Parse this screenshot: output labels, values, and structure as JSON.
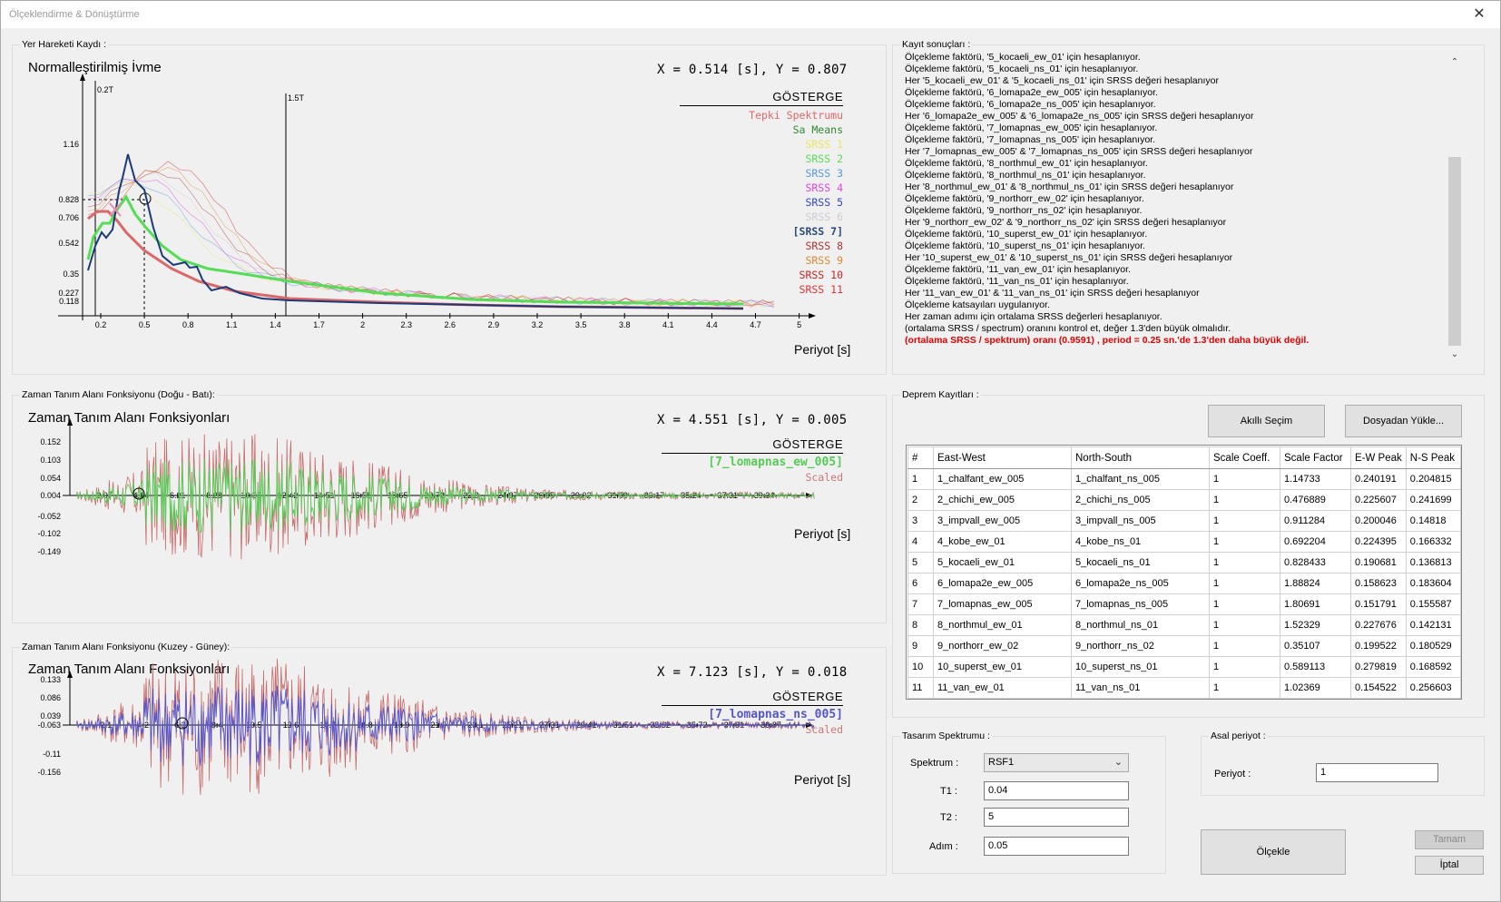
{
  "window": {
    "title": "Ölçeklendirme & Dönüştürme",
    "close": "✕"
  },
  "groups": {
    "spectrum": "Yer Hareketi Kaydı :",
    "log": "Kayıt sonuçları :",
    "ew": "Zaman Tanım Alanı Fonksiyonu (Doğu - Batı):",
    "records": "Deprem Kayıtları :",
    "ns": "Zaman Tanım Alanı Fonksiyonu (Kuzey - Güney):",
    "design": "Tasarım Spektrumu :",
    "period": "Asal periyot :"
  },
  "spectrum_chart": {
    "title": "Normalleştirilmiş İvme",
    "coord": "X = 0.514 [s],  Y = 0.807",
    "xlabel": "Periyot [s]",
    "legend_title": "GÖSTERGE",
    "legend": [
      {
        "label": "Tepki Spektrumu",
        "color": "#e06666"
      },
      {
        "label": "Sa Means",
        "color": "#2e8b2e"
      },
      {
        "label": "SRSS 1",
        "color": "#e8e85a"
      },
      {
        "label": "SRSS 2",
        "color": "#55dd55"
      },
      {
        "label": "SRSS 3",
        "color": "#5599dd"
      },
      {
        "label": "SRSS 4",
        "color": "#dd44dd"
      },
      {
        "label": "SRSS 5",
        "color": "#3344cc"
      },
      {
        "label": "SRSS 6",
        "color": "#cccccc"
      },
      {
        "label": "[SRSS 7]",
        "color": "#2a4a7a"
      },
      {
        "label": "SRSS 8",
        "color": "#aa3333"
      },
      {
        "label": "SRSS 9",
        "color": "#dd8833"
      },
      {
        "label": "SRSS 10",
        "color": "#cc2222"
      },
      {
        "label": "SRSS 11",
        "color": "#dd3333"
      }
    ],
    "yticks": [
      "1.16",
      "0.828",
      "0.706",
      "0.542",
      "0.35",
      "0.227",
      "0.118"
    ],
    "xticks": [
      "0.2",
      "0.5",
      "0.8",
      "1.1",
      "1.4",
      "1.7",
      "2",
      "2.3",
      "2.6",
      "2.9",
      "3.2",
      "3.5",
      "3.8",
      "4.1",
      "4.4",
      "4.7",
      "5"
    ],
    "markers": [
      "0.2T",
      "1.5T"
    ]
  },
  "ew_chart": {
    "title": "Zaman Tanım Alanı Fonksiyonları",
    "coord": "X = 4.551 [s],  Y = 0.005",
    "xlabel": "Periyot [s]",
    "legend_title": "GÖSTERGE",
    "legend": [
      {
        "label": "[7_lomapnas_ew_005]",
        "color": "#55cc55"
      },
      {
        "label": "Scaled",
        "color": "#cc7777"
      }
    ],
    "yticks": [
      "0.152",
      "0.103",
      "0.054",
      "0.004",
      "-0.052",
      "-0.102",
      "-0.149"
    ],
    "xticks": [
      "2.07",
      "4.14",
      "6.21",
      "8.28",
      "10.35",
      "12.42",
      "14.51",
      "16.58",
      "18.65",
      "20.72",
      "22.8",
      "24.87",
      "26.95",
      "29.02",
      "31.09",
      "33.17",
      "35.24",
      "37.31",
      "39.34"
    ]
  },
  "ns_chart": {
    "title": "Zaman Tanım Alanı Fonksiyonları",
    "coord": "X = 7.123 [s],  Y = 0.018",
    "xlabel": "Periyot [s]",
    "legend_title": "GÖSTERGE",
    "legend": [
      {
        "label": "[7_lomapnas_ns_005]",
        "color": "#5555cc"
      },
      {
        "label": "Scaled",
        "color": "#cc7777"
      }
    ],
    "yticks": [
      "0.133",
      "0.086",
      "0.039",
      "-0.063",
      "-0.11",
      "-0.156"
    ],
    "xticks": [
      "2.1",
      "4.2",
      "6.3",
      "8.4",
      "10.5",
      "12.6",
      "14.7",
      "16.8",
      "18.9",
      "21.0",
      "23.1",
      "25.21",
      "27.31",
      "29.41",
      "31.51",
      "33.62",
      "35.72",
      "37.81",
      "39.87"
    ]
  },
  "log": [
    "Ölçekleme faktörü, '5_kocaeli_ew_01' için hesaplanıyor.",
    "Ölçekleme faktörü, '5_kocaeli_ns_01' için hesaplanıyor.",
    "Her '5_kocaeli_ew_01' & '5_kocaeli_ns_01' için SRSS değeri hesaplanıyor",
    "Ölçekleme faktörü, '6_lomapa2e_ew_005' için hesaplanıyor.",
    "Ölçekleme faktörü, '6_lomapa2e_ns_005' için hesaplanıyor.",
    "Her '6_lomapa2e_ew_005' & '6_lomapa2e_ns_005' için SRSS değeri hesaplanıyor",
    "Ölçekleme faktörü, '7_lomapnas_ew_005' için hesaplanıyor.",
    "Ölçekleme faktörü, '7_lomapnas_ns_005' için hesaplanıyor.",
    "Her '7_lomapnas_ew_005' & '7_lomapnas_ns_005' için SRSS değeri hesaplanıyor",
    "Ölçekleme faktörü, '8_northmul_ew_01' için hesaplanıyor.",
    "Ölçekleme faktörü, '8_northmul_ns_01' için hesaplanıyor.",
    "Her '8_northmul_ew_01' & '8_northmul_ns_01' için SRSS değeri hesaplanıyor",
    "Ölçekleme faktörü, '9_northorr_ew_02' için hesaplanıyor.",
    "Ölçekleme faktörü, '9_northorr_ns_02' için hesaplanıyor.",
    "Her '9_northorr_ew_02' & '9_northorr_ns_02' için SRSS değeri hesaplanıyor",
    "Ölçekleme faktörü, '10_superst_ew_01' için hesaplanıyor.",
    "Ölçekleme faktörü, '10_superst_ns_01' için hesaplanıyor.",
    "Her '10_superst_ew_01' & '10_superst_ns_01' için SRSS değeri hesaplanıyor",
    "Ölçekleme faktörü, '11_van_ew_01' için hesaplanıyor.",
    "Ölçekleme faktörü, '11_van_ns_01' için hesaplanıyor.",
    "Her '11_van_ew_01' & '11_van_ns_01' için SRSS değeri hesaplanıyor",
    "Ölçekleme katsayıları uygulanıyor.",
    "Her zaman adımı için ortalama SRSS değerleri hesaplanıyor.",
    "(ortalama SRSS / spectrum) oranını kontrol et, değer 1.3'den büyük olmalıdır."
  ],
  "log_highlight": "(ortalama SRSS / spektrum) oranı  (0.9591) , period = 0.25 sn.'de 1.3'den daha büyük değil.",
  "buttons": {
    "smart_select": "Akıllı Seçim",
    "load_file": "Dosyadan Yükle...",
    "scale": "Ölçekle",
    "ok": "Tamam",
    "cancel": "İptal"
  },
  "table": {
    "columns": [
      "#",
      "East-West",
      "North-South",
      "Scale Coeff.",
      "Scale Factor",
      "E-W Peak",
      "N-S Peak"
    ],
    "rows": [
      [
        "1",
        "1_chalfant_ew_005",
        "1_chalfant_ns_005",
        "1",
        "1.14733",
        "0.240191",
        "0.204815"
      ],
      [
        "2",
        "2_chichi_ew_005",
        "2_chichi_ns_005",
        "1",
        "0.476889",
        "0.225607",
        "0.241699"
      ],
      [
        "3",
        "3_impvall_ew_005",
        "3_impvall_ns_005",
        "1",
        "0.911284",
        "0.200046",
        "0.14818"
      ],
      [
        "4",
        "4_kobe_ew_01",
        "4_kobe_ns_01",
        "1",
        "0.692204",
        "0.224395",
        "0.166332"
      ],
      [
        "5",
        "5_kocaeli_ew_01",
        "5_kocaeli_ns_01",
        "1",
        "0.828433",
        "0.190681",
        "0.136813"
      ],
      [
        "6",
        "6_lomapa2e_ew_005",
        "6_lomapa2e_ns_005",
        "1",
        "1.88824",
        "0.158623",
        "0.183604"
      ],
      [
        "7",
        "7_lomapnas_ew_005",
        "7_lomapnas_ns_005",
        "1",
        "1.80691",
        "0.151791",
        "0.155587"
      ],
      [
        "8",
        "8_northmul_ew_01",
        "8_northmul_ns_01",
        "1",
        "1.52329",
        "0.227676",
        "0.142131"
      ],
      [
        "9",
        "9_northorr_ew_02",
        "9_northorr_ns_02",
        "1",
        "0.35107",
        "0.199522",
        "0.180529"
      ],
      [
        "10",
        "10_superst_ew_01",
        "10_superst_ns_01",
        "1",
        "0.589113",
        "0.279819",
        "0.168592"
      ],
      [
        "11",
        "11_van_ew_01",
        "11_van_ns_01",
        "1",
        "1.02369",
        "0.154522",
        "0.256603"
      ]
    ]
  },
  "design": {
    "spectrum_label": "Spektrum :",
    "spectrum_value": "RSF1",
    "t1_label": "T1 :",
    "t1_value": "0.04",
    "t2_label": "T2 :",
    "t2_value": "5",
    "step_label": "Adım :",
    "step_value": "0.05"
  },
  "period": {
    "label": "Periyot :",
    "value": "1"
  }
}
